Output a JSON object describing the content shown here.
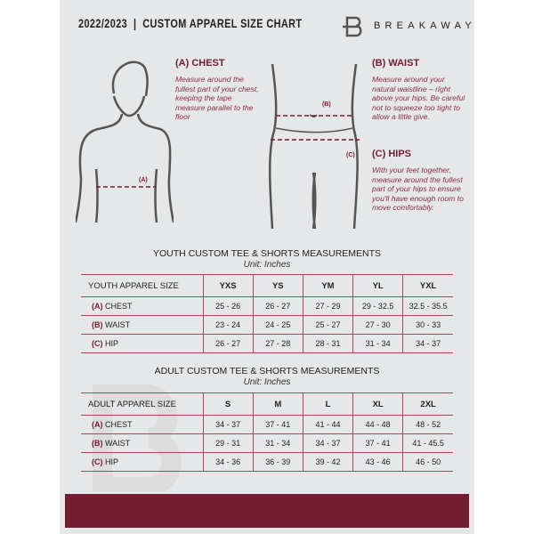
{
  "header": {
    "title": "2022/2023  |  CUSTOM APPAREL SIZE CHART",
    "brand": "BREAKAWAY",
    "logo_letter": "B"
  },
  "colors": {
    "accent": "#731c32",
    "background": "#e6e7e8"
  },
  "chest": {
    "heading": "(A) CHEST",
    "text": "Measure around the fullest part of your chest, keeping the tape measure parallel to the floor",
    "marker": "(A)"
  },
  "waist": {
    "heading": "(B) WAIST",
    "text": "Measure around your natural waistline – right above your hips. Be careful not to squeeze too tight to allow a little give.",
    "marker": "(B)"
  },
  "hips": {
    "heading": "(C) HIPS",
    "text": "With your feet together, measure around the fullest part of your hips to ensure you'll have enough room to move comfortably.",
    "marker": "(C)"
  },
  "youth": {
    "title": "YOUTH CUSTOM TEE & SHORTS MEASUREMENTS",
    "unit": "Unit: Inches",
    "header": [
      "YOUTH APPAREL SIZE",
      "YXS",
      "YS",
      "YM",
      "YL",
      "YXL"
    ],
    "rows": [
      {
        "letter": "(A)",
        "label": "CHEST",
        "values": [
          "25 - 26",
          "26 - 27",
          "27 - 29",
          "29 - 32.5",
          "32.5 - 35.5"
        ]
      },
      {
        "letter": "(B)",
        "label": "WAIST",
        "values": [
          "23 - 24",
          "24 - 25",
          "25 - 27",
          "27 - 30",
          "30 - 33"
        ]
      },
      {
        "letter": "(C)",
        "label": "HIP",
        "values": [
          "26 - 27",
          "27 - 28",
          "28 - 31",
          "31 - 34",
          "34 - 37"
        ]
      }
    ]
  },
  "adult": {
    "title": "ADULT CUSTOM TEE & SHORTS MEASUREMENTS",
    "unit": "Unit: Inches",
    "header": [
      "ADULT APPAREL SIZE",
      "S",
      "M",
      "L",
      "XL",
      "2XL"
    ],
    "rows": [
      {
        "letter": "(A)",
        "label": "CHEST",
        "values": [
          "34 - 37",
          "37 - 41",
          "41 - 44",
          "44 - 48",
          "48 - 52"
        ]
      },
      {
        "letter": "(B)",
        "label": "WAIST",
        "values": [
          "29 - 31",
          "31 - 34",
          "34 - 37",
          "37 - 41",
          "41 - 45.5"
        ]
      },
      {
        "letter": "(C)",
        "label": "HIP",
        "values": [
          "34 - 36",
          "36 - 39",
          "39 - 42",
          "43 - 46",
          "46 - 50"
        ]
      }
    ]
  }
}
